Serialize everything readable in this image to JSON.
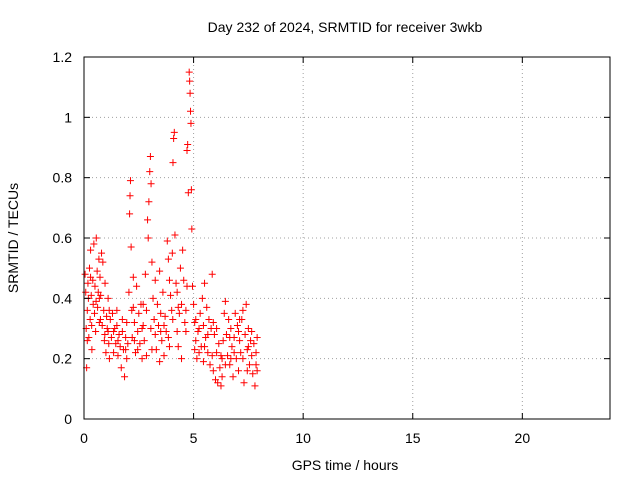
{
  "chart_data": {
    "type": "scatter",
    "title": "Day 232 of 2024, SRMTID for receiver 3wkb",
    "xlabel": "GPS time / hours",
    "ylabel": "SRMTID / TECUs",
    "xlim": [
      0,
      24
    ],
    "ylim": [
      0,
      1.2
    ],
    "xticks": [
      0,
      5,
      10,
      15,
      20
    ],
    "xtick_labels": [
      "0",
      "5",
      "10",
      "15",
      "20"
    ],
    "yticks": [
      0,
      0.2,
      0.4,
      0.6,
      0.8,
      1.0,
      1.2
    ],
    "ytick_labels": [
      "0",
      "0.2",
      "0.4",
      "0.6",
      "0.8",
      "1",
      "1.2"
    ],
    "grid": true,
    "marker": "+",
    "series": [
      {
        "name": "SRMTID",
        "color": "#ff0000",
        "points": [
          [
            0.05,
            0.48
          ],
          [
            0.08,
            0.42
          ],
          [
            0.1,
            0.3
          ],
          [
            0.12,
            0.17
          ],
          [
            0.15,
            0.36
          ],
          [
            0.18,
            0.45
          ],
          [
            0.2,
            0.4
          ],
          [
            0.22,
            0.27
          ],
          [
            0.25,
            0.5
          ],
          [
            0.28,
            0.33
          ],
          [
            0.3,
            0.56
          ],
          [
            0.33,
            0.41
          ],
          [
            0.36,
            0.23
          ],
          [
            0.4,
            0.46
          ],
          [
            0.42,
            0.38
          ],
          [
            0.45,
            0.58
          ],
          [
            0.48,
            0.35
          ],
          [
            0.5,
            0.44
          ],
          [
            0.53,
            0.29
          ],
          [
            0.56,
            0.6
          ],
          [
            0.6,
            0.49
          ],
          [
            0.62,
            0.37
          ],
          [
            0.65,
            0.42
          ],
          [
            0.68,
            0.53
          ],
          [
            0.7,
            0.32
          ],
          [
            0.73,
            0.47
          ],
          [
            0.76,
            0.41
          ],
          [
            0.8,
            0.55
          ],
          [
            0.83,
            0.31
          ],
          [
            0.86,
            0.52
          ],
          [
            0.9,
            0.36
          ],
          [
            0.93,
            0.26
          ],
          [
            0.96,
            0.45
          ],
          [
            1.0,
            0.22
          ],
          [
            1.03,
            0.34
          ],
          [
            1.06,
            0.3
          ],
          [
            1.1,
            0.4
          ],
          [
            1.13,
            0.25
          ],
          [
            1.16,
            0.2
          ],
          [
            1.2,
            0.33
          ],
          [
            1.25,
            0.27
          ],
          [
            1.3,
            0.35
          ],
          [
            1.35,
            0.22
          ],
          [
            1.4,
            0.3
          ],
          [
            1.45,
            0.25
          ],
          [
            1.5,
            0.31
          ],
          [
            1.55,
            0.21
          ],
          [
            1.6,
            0.28
          ],
          [
            1.65,
            0.24
          ],
          [
            1.7,
            0.17
          ],
          [
            1.75,
            0.29
          ],
          [
            1.8,
            0.23
          ],
          [
            1.85,
            0.14
          ],
          [
            1.9,
            0.27
          ],
          [
            1.95,
            0.32
          ],
          [
            2.0,
            0.25
          ],
          [
            2.05,
            0.42
          ],
          [
            2.08,
            0.68
          ],
          [
            2.1,
            0.74
          ],
          [
            2.12,
            0.79
          ],
          [
            2.15,
            0.57
          ],
          [
            2.18,
            0.36
          ],
          [
            2.2,
            0.27
          ],
          [
            2.25,
            0.47
          ],
          [
            2.3,
            0.32
          ],
          [
            2.35,
            0.22
          ],
          [
            2.4,
            0.44
          ],
          [
            2.45,
            0.29
          ],
          [
            2.5,
            0.35
          ],
          [
            2.55,
            0.25
          ],
          [
            2.6,
            0.38
          ],
          [
            2.65,
            0.2
          ],
          [
            2.7,
            0.31
          ],
          [
            2.75,
            0.26
          ],
          [
            2.8,
            0.48
          ],
          [
            2.85,
            0.36
          ],
          [
            2.9,
            0.66
          ],
          [
            2.93,
            0.6
          ],
          [
            2.96,
            0.72
          ],
          [
            3.0,
            0.82
          ],
          [
            3.03,
            0.87
          ],
          [
            3.06,
            0.78
          ],
          [
            3.1,
            0.52
          ],
          [
            3.15,
            0.4
          ],
          [
            3.2,
            0.33
          ],
          [
            3.25,
            0.46
          ],
          [
            3.3,
            0.23
          ],
          [
            3.35,
            0.38
          ],
          [
            3.4,
            0.31
          ],
          [
            3.45,
            0.49
          ],
          [
            3.5,
            0.35
          ],
          [
            3.55,
            0.26
          ],
          [
            3.6,
            0.42
          ],
          [
            3.65,
            0.21
          ],
          [
            3.7,
            0.34
          ],
          [
            3.75,
            0.29
          ],
          [
            3.8,
            0.59
          ],
          [
            3.85,
            0.53
          ],
          [
            3.9,
            0.46
          ],
          [
            3.95,
            0.41
          ],
          [
            4.0,
            0.36
          ],
          [
            4.03,
            0.55
          ],
          [
            4.06,
            0.85
          ],
          [
            4.09,
            0.93
          ],
          [
            4.12,
            0.95
          ],
          [
            4.15,
            0.61
          ],
          [
            4.2,
            0.45
          ],
          [
            4.25,
            0.29
          ],
          [
            4.3,
            0.24
          ],
          [
            4.35,
            0.35
          ],
          [
            4.4,
            0.5
          ],
          [
            4.45,
            0.38
          ],
          [
            4.5,
            0.56
          ],
          [
            4.55,
            0.46
          ],
          [
            4.6,
            0.32
          ],
          [
            4.65,
            0.29
          ],
          [
            4.7,
            0.89
          ],
          [
            4.73,
            0.91
          ],
          [
            4.76,
            0.75
          ],
          [
            4.8,
            1.15
          ],
          [
            4.82,
            1.12
          ],
          [
            4.84,
            1.08
          ],
          [
            4.86,
            1.02
          ],
          [
            4.88,
            0.98
          ],
          [
            4.9,
            0.76
          ],
          [
            4.92,
            0.63
          ],
          [
            4.95,
            0.44
          ],
          [
            5.0,
            0.38
          ],
          [
            5.05,
            0.32
          ],
          [
            5.1,
            0.26
          ],
          [
            5.15,
            0.2
          ],
          [
            5.2,
            0.29
          ],
          [
            5.25,
            0.22
          ],
          [
            5.3,
            0.35
          ],
          [
            5.35,
            0.24
          ],
          [
            5.4,
            0.4
          ],
          [
            5.45,
            0.31
          ],
          [
            5.5,
            0.45
          ],
          [
            5.55,
            0.27
          ],
          [
            5.6,
            0.37
          ],
          [
            5.65,
            0.22
          ],
          [
            5.7,
            0.33
          ],
          [
            5.75,
            0.18
          ],
          [
            5.8,
            0.3
          ],
          [
            5.85,
            0.48
          ],
          [
            5.9,
            0.16
          ],
          [
            5.95,
            0.28
          ],
          [
            6.0,
            0.13
          ],
          [
            6.05,
            0.22
          ],
          [
            6.1,
            0.12
          ],
          [
            6.15,
            0.25
          ],
          [
            6.2,
            0.17
          ],
          [
            6.25,
            0.11
          ],
          [
            6.3,
            0.2
          ],
          [
            6.35,
            0.26
          ],
          [
            6.4,
            0.35
          ],
          [
            6.45,
            0.39
          ],
          [
            6.5,
            0.28
          ],
          [
            6.55,
            0.21
          ],
          [
            6.6,
            0.33
          ],
          [
            6.65,
            0.18
          ],
          [
            6.7,
            0.3
          ],
          [
            6.75,
            0.24
          ],
          [
            6.8,
            0.14
          ],
          [
            6.85,
            0.27
          ],
          [
            6.9,
            0.35
          ],
          [
            6.95,
            0.2
          ],
          [
            7.0,
            0.31
          ],
          [
            7.05,
            0.16
          ],
          [
            7.1,
            0.26
          ],
          [
            7.15,
            0.22
          ],
          [
            7.2,
            0.33
          ],
          [
            7.25,
            0.36
          ],
          [
            7.3,
            0.12
          ],
          [
            7.35,
            0.28
          ],
          [
            7.4,
            0.38
          ],
          [
            7.45,
            0.23
          ],
          [
            7.5,
            0.3
          ],
          [
            7.55,
            0.18
          ],
          [
            7.6,
            0.26
          ],
          [
            7.65,
            0.21
          ],
          [
            7.7,
            0.15
          ],
          [
            7.75,
            0.25
          ],
          [
            7.8,
            0.11
          ],
          [
            7.85,
            0.22
          ],
          [
            7.9,
            0.27
          ],
          [
            0.15,
            0.26
          ],
          [
            0.35,
            0.31
          ],
          [
            0.55,
            0.39
          ],
          [
            0.75,
            0.33
          ],
          [
            0.95,
            0.28
          ],
          [
            1.15,
            0.36
          ],
          [
            1.35,
            0.29
          ],
          [
            1.55,
            0.26
          ],
          [
            1.75,
            0.33
          ],
          [
            1.95,
            0.2
          ],
          [
            2.25,
            0.37
          ],
          [
            2.45,
            0.23
          ],
          [
            2.65,
            0.3
          ],
          [
            2.85,
            0.21
          ],
          [
            3.05,
            0.3
          ],
          [
            3.25,
            0.28
          ],
          [
            3.45,
            0.19
          ],
          [
            3.65,
            0.31
          ],
          [
            3.85,
            0.27
          ],
          [
            4.05,
            0.33
          ],
          [
            4.25,
            0.42
          ],
          [
            4.45,
            0.2
          ],
          [
            4.65,
            0.36
          ],
          [
            5.05,
            0.23
          ],
          [
            5.25,
            0.3
          ],
          [
            5.45,
            0.19
          ],
          [
            5.65,
            0.28
          ],
          [
            5.85,
            0.21
          ],
          [
            6.05,
            0.3
          ],
          [
            6.25,
            0.21
          ],
          [
            6.45,
            0.18
          ],
          [
            6.65,
            0.27
          ],
          [
            6.85,
            0.22
          ],
          [
            7.05,
            0.29
          ],
          [
            7.25,
            0.2
          ],
          [
            7.45,
            0.16
          ],
          [
            7.65,
            0.29
          ],
          [
            7.85,
            0.18
          ],
          [
            0.3,
            0.47
          ],
          [
            0.7,
            0.4
          ],
          [
            1.1,
            0.29
          ],
          [
            1.5,
            0.36
          ],
          [
            1.9,
            0.23
          ],
          [
            2.3,
            0.26
          ],
          [
            2.7,
            0.38
          ],
          [
            3.1,
            0.23
          ],
          [
            3.5,
            0.29
          ],
          [
            3.9,
            0.24
          ],
          [
            4.3,
            0.37
          ],
          [
            4.7,
            0.44
          ],
          [
            5.1,
            0.33
          ],
          [
            5.5,
            0.24
          ],
          [
            5.9,
            0.32
          ],
          [
            6.3,
            0.14
          ],
          [
            6.7,
            0.2
          ],
          [
            7.1,
            0.33
          ],
          [
            7.5,
            0.24
          ],
          [
            7.9,
            0.16
          ]
        ]
      }
    ]
  }
}
